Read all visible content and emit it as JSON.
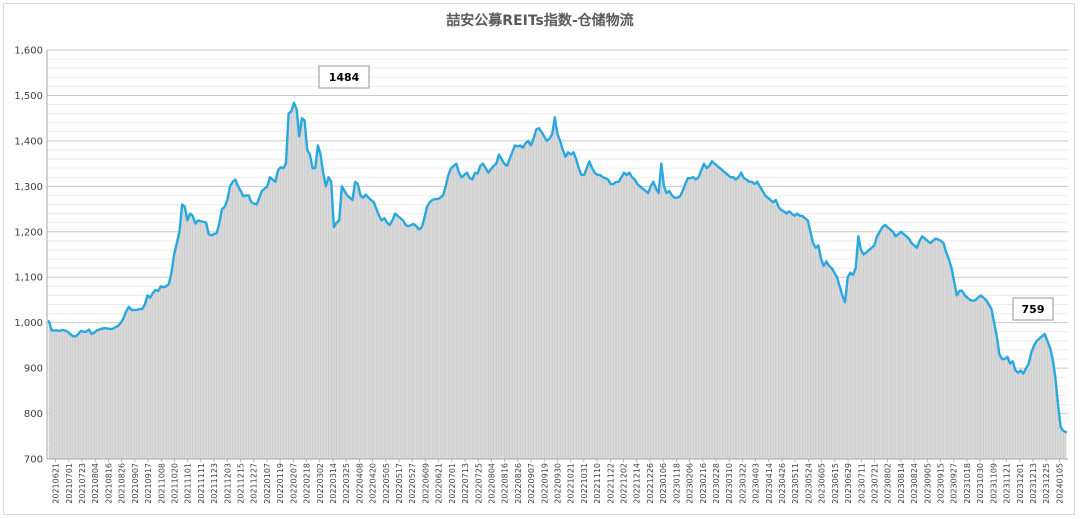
{
  "chart_data": {
    "type": "area",
    "title": "喆安公募REITs指数-仓储物流",
    "xlabel": "",
    "ylabel": "",
    "ylim": [
      700,
      1600
    ],
    "yticks": [
      "700",
      "800",
      "900",
      "1,000",
      "1,100",
      "1,200",
      "1,300",
      "1,400",
      "1,500",
      "1,600"
    ],
    "grid": true,
    "legend": "none",
    "colors": {
      "line": "#29a8e0",
      "fill": "#d9d9d9",
      "grid": "#d9d9d9"
    },
    "x_tick_labels": [
      "20210621",
      "20210701",
      "20210723",
      "20210804",
      "20210816",
      "20210826",
      "20210907",
      "20210917",
      "20211008",
      "20211020",
      "20211101",
      "20211111",
      "20211123",
      "20211203",
      "20211215",
      "20211227",
      "20220107",
      "20220119",
      "20220207",
      "20220218",
      "20220302",
      "20220314",
      "20220325",
      "20220408",
      "20220420",
      "20220505",
      "20220517",
      "20220527",
      "20220609",
      "20220621",
      "20220701",
      "20220713",
      "20220725",
      "20220804",
      "20220816",
      "20220826",
      "20220907",
      "20220919",
      "20220930",
      "20221021",
      "20221031",
      "20221110",
      "20221122",
      "20221202",
      "20221214",
      "20221226",
      "20230106",
      "20230118",
      "20230206",
      "20230216",
      "20230228",
      "20230310",
      "20230322",
      "20230403",
      "20230414",
      "20230426",
      "20230511",
      "20230524",
      "20230605",
      "20230615",
      "20230629",
      "20230711",
      "20230721",
      "20230802",
      "20230814",
      "20230824",
      "20230905",
      "20230915",
      "20230927",
      "20231018",
      "20231030",
      "20231109",
      "20231121",
      "20231201",
      "20231213",
      "20231225",
      "20240105"
    ],
    "values": [
      1003,
      983,
      983,
      983,
      982,
      984,
      983,
      980,
      975,
      970,
      970,
      975,
      982,
      980,
      980,
      985,
      975,
      978,
      983,
      985,
      987,
      988,
      987,
      986,
      987,
      990,
      993,
      1000,
      1010,
      1025,
      1035,
      1028,
      1028,
      1028,
      1030,
      1030,
      1040,
      1060,
      1055,
      1065,
      1072,
      1070,
      1080,
      1078,
      1080,
      1085,
      1110,
      1150,
      1175,
      1200,
      1260,
      1255,
      1225,
      1240,
      1235,
      1218,
      1225,
      1223,
      1222,
      1220,
      1195,
      1192,
      1195,
      1197,
      1220,
      1250,
      1255,
      1270,
      1300,
      1310,
      1315,
      1300,
      1290,
      1278,
      1280,
      1280,
      1265,
      1262,
      1260,
      1275,
      1290,
      1295,
      1300,
      1320,
      1315,
      1310,
      1335,
      1342,
      1340,
      1350,
      1460,
      1465,
      1484,
      1470,
      1410,
      1450,
      1445,
      1380,
      1370,
      1340,
      1340,
      1390,
      1370,
      1330,
      1300,
      1320,
      1310,
      1210,
      1220,
      1225,
      1300,
      1290,
      1280,
      1275,
      1270,
      1310,
      1305,
      1280,
      1275,
      1282,
      1275,
      1270,
      1265,
      1250,
      1235,
      1225,
      1230,
      1220,
      1215,
      1225,
      1240,
      1235,
      1230,
      1225,
      1215,
      1212,
      1215,
      1217,
      1212,
      1205,
      1210,
      1230,
      1255,
      1265,
      1270,
      1272,
      1272,
      1275,
      1280,
      1300,
      1325,
      1340,
      1345,
      1350,
      1330,
      1320,
      1325,
      1330,
      1318,
      1315,
      1330,
      1328,
      1345,
      1350,
      1340,
      1330,
      1338,
      1345,
      1350,
      1370,
      1360,
      1350,
      1345,
      1360,
      1375,
      1390,
      1388,
      1390,
      1385,
      1395,
      1400,
      1390,
      1405,
      1425,
      1428,
      1420,
      1410,
      1400,
      1405,
      1415,
      1452,
      1415,
      1400,
      1380,
      1365,
      1375,
      1370,
      1375,
      1360,
      1340,
      1325,
      1325,
      1340,
      1355,
      1340,
      1330,
      1325,
      1325,
      1320,
      1318,
      1315,
      1305,
      1305,
      1310,
      1310,
      1320,
      1330,
      1325,
      1330,
      1320,
      1315,
      1305,
      1300,
      1295,
      1290,
      1285,
      1300,
      1310,
      1295,
      1285,
      1350,
      1300,
      1285,
      1290,
      1280,
      1275,
      1275,
      1278,
      1290,
      1305,
      1318,
      1318,
      1320,
      1315,
      1320,
      1335,
      1350,
      1340,
      1345,
      1355,
      1350,
      1345,
      1340,
      1335,
      1330,
      1325,
      1320,
      1320,
      1315,
      1320,
      1330,
      1318,
      1315,
      1310,
      1310,
      1305,
      1310,
      1300,
      1290,
      1280,
      1275,
      1270,
      1265,
      1270,
      1255,
      1248,
      1245,
      1240,
      1245,
      1240,
      1235,
      1240,
      1235,
      1235,
      1230,
      1225,
      1200,
      1175,
      1165,
      1170,
      1140,
      1125,
      1135,
      1125,
      1120,
      1110,
      1100,
      1080,
      1060,
      1045,
      1100,
      1110,
      1105,
      1120,
      1190,
      1160,
      1150,
      1155,
      1160,
      1165,
      1170,
      1190,
      1200,
      1210,
      1215,
      1210,
      1205,
      1200,
      1190,
      1195,
      1200,
      1195,
      1190,
      1185,
      1175,
      1170,
      1165,
      1180,
      1190,
      1185,
      1180,
      1175,
      1180,
      1185,
      1183,
      1180,
      1175,
      1155,
      1140,
      1120,
      1090,
      1060,
      1070,
      1070,
      1060,
      1055,
      1050,
      1048,
      1050,
      1055,
      1060,
      1055,
      1050,
      1040,
      1030,
      1000,
      970,
      930,
      920,
      920,
      925,
      910,
      915,
      895,
      890,
      895,
      888,
      900,
      910,
      935,
      950,
      960,
      965,
      970,
      975,
      960,
      945,
      920,
      880,
      820,
      770,
      762,
      759
    ]
  },
  "callouts": {
    "max_label": "1484",
    "min_label": "759"
  }
}
